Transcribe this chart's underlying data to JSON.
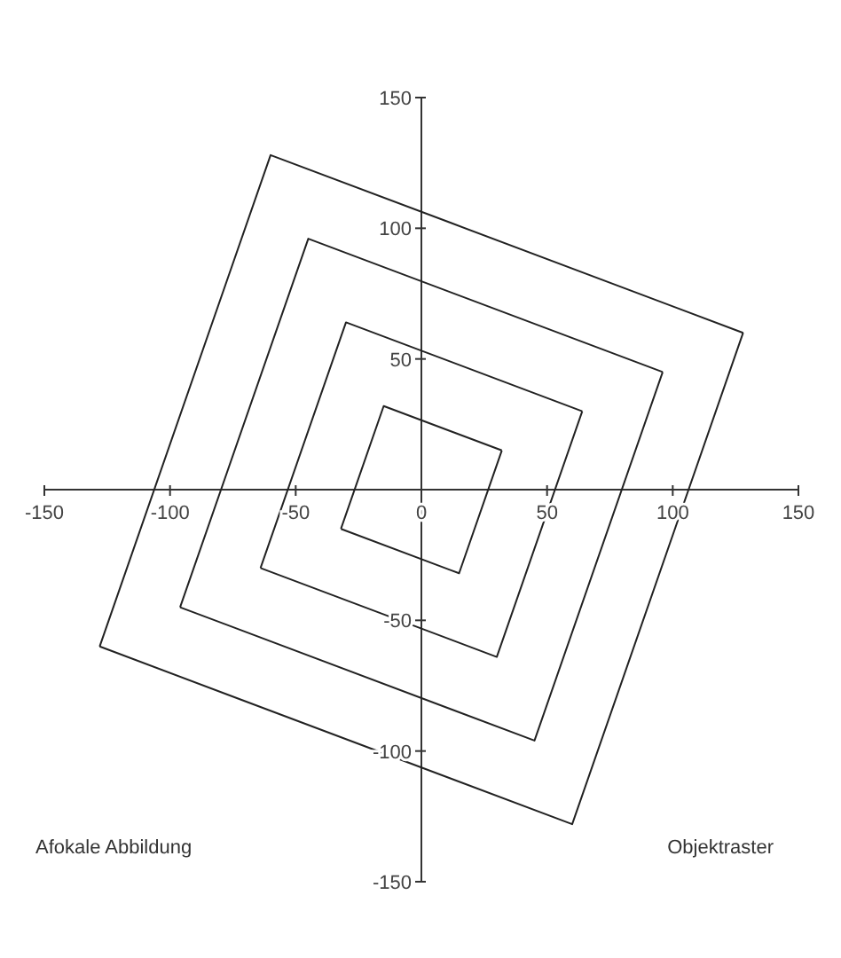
{
  "chart_data": {
    "type": "line",
    "xlim": [
      -150,
      150
    ],
    "ylim": [
      -150,
      150
    ],
    "xticks": [
      -150,
      -100,
      -50,
      0,
      50,
      100,
      150
    ],
    "yticks": [
      -150,
      -100,
      -50,
      {
        "value": 0,
        "label": null
      },
      50,
      100,
      150
    ],
    "grid": false,
    "legend": false,
    "marker": "none",
    "line_style": "solid",
    "series": [
      {
        "color": "#222222",
        "x": [
          -128,
          -60,
          128
        ],
        "values": [
          -60,
          128,
          60
        ]
      },
      {
        "color": "#222222",
        "x": [
          -128,
          60,
          128
        ],
        "values": [
          -60,
          -128,
          60
        ]
      },
      {
        "color": "#222222",
        "x": [
          -96,
          -45,
          96
        ],
        "values": [
          -45,
          96,
          45
        ]
      },
      {
        "color": "#222222",
        "x": [
          -96,
          45,
          96
        ],
        "values": [
          -45,
          -96,
          45
        ]
      },
      {
        "color": "#222222",
        "x": [
          -64,
          -30,
          64
        ],
        "values": [
          -30,
          64,
          30
        ]
      },
      {
        "color": "#222222",
        "x": [
          -64,
          30,
          64
        ],
        "values": [
          -30,
          -64,
          30
        ]
      },
      {
        "color": "#222222",
        "x": [
          -32,
          -15,
          32
        ],
        "values": [
          -15,
          32,
          15
        ]
      },
      {
        "color": "#222222",
        "x": [
          -32,
          15,
          32
        ],
        "values": [
          -15,
          -32,
          15
        ]
      }
    ],
    "annotations": [
      "Afokale Abbildung",
      "Objektraster"
    ]
  }
}
